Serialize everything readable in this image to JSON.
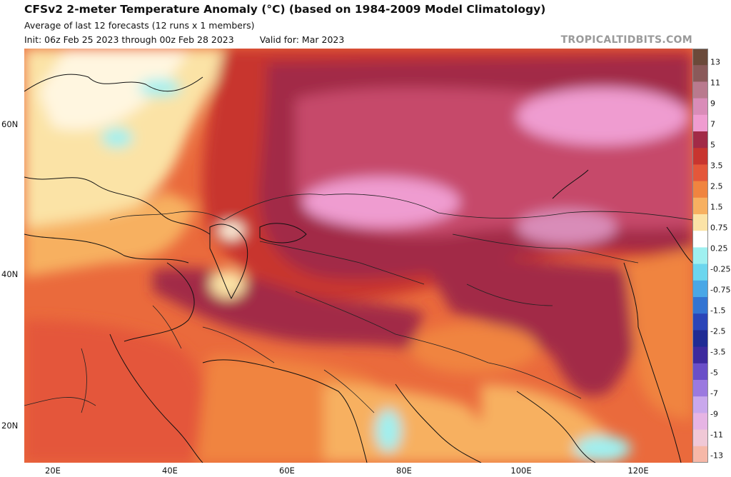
{
  "header": {
    "title": "CFSv2 2-meter Temperature Anomaly (°C) (based on 1984-2009 Model Climatology)",
    "subtitle": "Average of last 12 forecasts (12 runs x 1 members)",
    "init": "Init: 06z Feb 25 2023 through 00z Feb 28 2023",
    "valid": "Valid for: Mar 2023",
    "brand": "TROPICALTIDBITS.COM"
  },
  "map": {
    "lat_labels": [
      "60N",
      "40N",
      "20N"
    ],
    "lon_labels": [
      "20E",
      "40E",
      "60E",
      "80E",
      "100E",
      "120E"
    ]
  },
  "colorbar": {
    "labels": [
      "13",
      "11",
      "9",
      "7",
      "5",
      "3.5",
      "2.5",
      "1.5",
      "0.75",
      "0.25",
      "-0.25",
      "-0.75",
      "-1.5",
      "-2.5",
      "-3.5",
      "-5",
      "-7",
      "-9",
      "-11",
      "-13"
    ],
    "colors": [
      "#6b4a3a",
      "#8a5a5a",
      "#b97a8e",
      "#d98cb8",
      "#ef9cd0",
      "#a22a47",
      "#c8352f",
      "#e4573a",
      "#f0843f",
      "#f7b060",
      "#fbe3a6",
      "#ffffff",
      "#9ff0f0",
      "#6cd6ee",
      "#4aa7e6",
      "#3474d2",
      "#2b45b8",
      "#1f2b94",
      "#3d2a9e",
      "#6a4fc8",
      "#9b79df",
      "#c9a8ec",
      "#e6b4e4",
      "#f0c8d6",
      "#f6b8a8"
    ]
  }
}
